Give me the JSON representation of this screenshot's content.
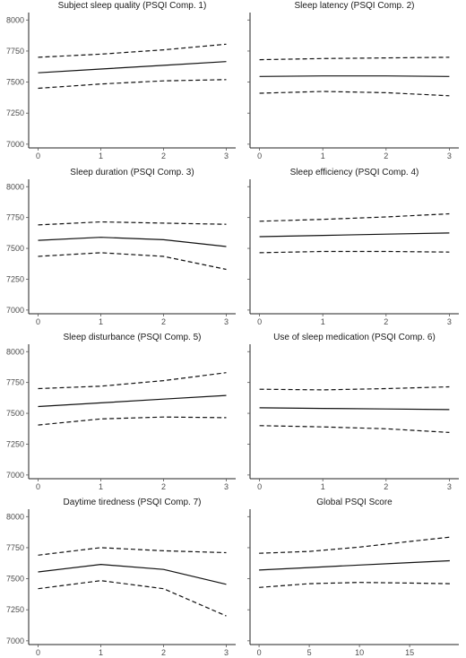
{
  "chart_data": [
    {
      "type": "line",
      "title": "Subject sleep quality (PSQI Comp. 1)",
      "xlabel": "",
      "ylabel": "",
      "x": [
        0,
        1,
        2,
        3
      ],
      "xticks": [
        0,
        1,
        2,
        3
      ],
      "xlim": [
        -0.15,
        3.15
      ],
      "yticks": [
        7000,
        7250,
        7500,
        7750,
        8000
      ],
      "ylim": [
        6970,
        8060
      ],
      "series": [
        {
          "style": "solid",
          "values": [
            7575,
            7605,
            7635,
            7665
          ]
        },
        {
          "style": "dashed",
          "values": [
            7700,
            7725,
            7760,
            7805
          ]
        },
        {
          "style": "dashed",
          "values": [
            7450,
            7485,
            7510,
            7520
          ]
        }
      ]
    },
    {
      "type": "line",
      "title": "Sleep latency (PSQI Comp. 2)",
      "xlabel": "",
      "ylabel": "",
      "x": [
        0,
        1,
        2,
        3
      ],
      "xticks": [
        0,
        1,
        2,
        3
      ],
      "xlim": [
        -0.15,
        3.15
      ],
      "ylim": [
        6970,
        8060
      ],
      "series": [
        {
          "style": "solid",
          "values": [
            7545,
            7550,
            7550,
            7545
          ]
        },
        {
          "style": "dashed",
          "values": [
            7680,
            7690,
            7695,
            7700
          ]
        },
        {
          "style": "dashed",
          "values": [
            7410,
            7425,
            7415,
            7390
          ]
        }
      ]
    },
    {
      "type": "line",
      "title": "Sleep duration (PSQI Comp. 3)",
      "xlabel": "",
      "ylabel": "",
      "x": [
        0,
        1,
        2,
        3
      ],
      "xticks": [
        0,
        1,
        2,
        3
      ],
      "xlim": [
        -0.15,
        3.15
      ],
      "yticks": [
        7000,
        7250,
        7500,
        7750,
        8000
      ],
      "ylim": [
        6970,
        8060
      ],
      "series": [
        {
          "style": "solid",
          "values": [
            7565,
            7590,
            7570,
            7515
          ]
        },
        {
          "style": "dashed",
          "values": [
            7690,
            7715,
            7705,
            7695
          ]
        },
        {
          "style": "dashed",
          "values": [
            7435,
            7465,
            7435,
            7330
          ]
        }
      ]
    },
    {
      "type": "line",
      "title": "Sleep efficiency (PSQI Comp. 4)",
      "xlabel": "",
      "ylabel": "",
      "x": [
        0,
        1,
        2,
        3
      ],
      "xticks": [
        0,
        1,
        2,
        3
      ],
      "xlim": [
        -0.15,
        3.15
      ],
      "ylim": [
        6970,
        8060
      ],
      "series": [
        {
          "style": "solid",
          "values": [
            7595,
            7605,
            7615,
            7625
          ]
        },
        {
          "style": "dashed",
          "values": [
            7720,
            7735,
            7755,
            7780
          ]
        },
        {
          "style": "dashed",
          "values": [
            7465,
            7475,
            7475,
            7470
          ]
        }
      ]
    },
    {
      "type": "line",
      "title": "Sleep disturbance (PSQI Comp. 5)",
      "xlabel": "",
      "ylabel": "",
      "x": [
        0,
        1,
        2,
        3
      ],
      "xticks": [
        0,
        1,
        2,
        3
      ],
      "xlim": [
        -0.15,
        3.15
      ],
      "yticks": [
        7000,
        7250,
        7500,
        7750,
        8000
      ],
      "ylim": [
        6970,
        8060
      ],
      "series": [
        {
          "style": "solid",
          "values": [
            7555,
            7585,
            7615,
            7645
          ]
        },
        {
          "style": "dashed",
          "values": [
            7700,
            7720,
            7765,
            7830
          ]
        },
        {
          "style": "dashed",
          "values": [
            7405,
            7455,
            7470,
            7465
          ]
        }
      ]
    },
    {
      "type": "line",
      "title": "Use of sleep medication (PSQI Comp. 6)",
      "xlabel": "",
      "ylabel": "",
      "x": [
        0,
        1,
        2,
        3
      ],
      "xticks": [
        0,
        1,
        2,
        3
      ],
      "xlim": [
        -0.15,
        3.15
      ],
      "ylim": [
        6970,
        8060
      ],
      "series": [
        {
          "style": "solid",
          "values": [
            7545,
            7540,
            7535,
            7530
          ]
        },
        {
          "style": "dashed",
          "values": [
            7695,
            7690,
            7700,
            7715
          ]
        },
        {
          "style": "dashed",
          "values": [
            7400,
            7390,
            7375,
            7345
          ]
        }
      ]
    },
    {
      "type": "line",
      "title": "Daytime tiredness (PSQI Comp. 7)",
      "xlabel": "",
      "ylabel": "",
      "x": [
        0,
        1,
        2,
        3
      ],
      "xticks": [
        0,
        1,
        2,
        3
      ],
      "xlim": [
        -0.15,
        3.15
      ],
      "yticks": [
        7000,
        7250,
        7500,
        7750,
        8000
      ],
      "ylim": [
        6970,
        8060
      ],
      "series": [
        {
          "style": "solid",
          "values": [
            7555,
            7615,
            7575,
            7455
          ]
        },
        {
          "style": "dashed",
          "values": [
            7690,
            7750,
            7725,
            7710
          ]
        },
        {
          "style": "dashed",
          "values": [
            7420,
            7485,
            7420,
            7200
          ]
        }
      ]
    },
    {
      "type": "line",
      "title": "Global PSQI Score",
      "xlabel": "",
      "ylabel": "",
      "x": [
        0,
        5,
        10,
        15,
        19
      ],
      "xticks": [
        0,
        5,
        10,
        15
      ],
      "xlim": [
        -0.9,
        19.9
      ],
      "ylim": [
        6970,
        8060
      ],
      "series": [
        {
          "style": "solid",
          "values": [
            7570,
            7590,
            7610,
            7630,
            7645
          ]
        },
        {
          "style": "dashed",
          "values": [
            7705,
            7720,
            7755,
            7800,
            7835
          ]
        },
        {
          "style": "dashed",
          "values": [
            7430,
            7460,
            7470,
            7465,
            7460
          ]
        }
      ]
    }
  ]
}
